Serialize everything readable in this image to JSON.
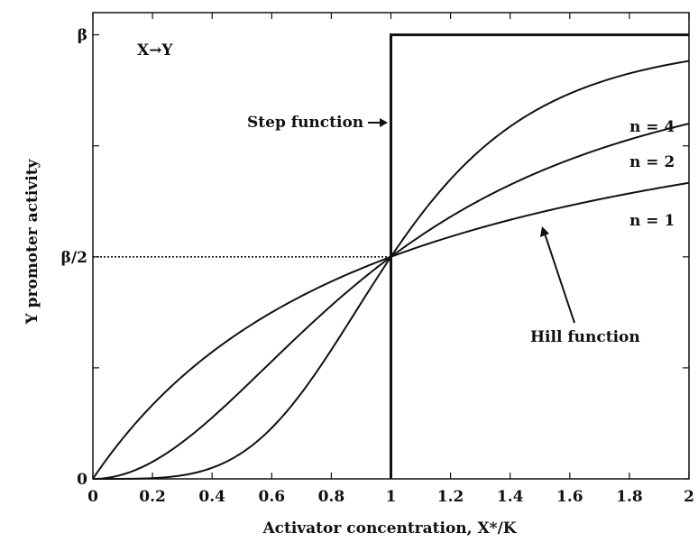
{
  "chart_data": {
    "type": "line",
    "title": "",
    "xlabel": "Activator concentration, X*/K",
    "ylabel": "Y promoter activity",
    "xlim": [
      0,
      2
    ],
    "ylim": [
      0,
      1.05
    ],
    "x_ticks": [
      {
        "v": 0,
        "label": "0"
      },
      {
        "v": 0.2,
        "label": "0.2"
      },
      {
        "v": 0.4,
        "label": "0.4"
      },
      {
        "v": 0.6,
        "label": "0.6"
      },
      {
        "v": 0.8,
        "label": "0.8"
      },
      {
        "v": 1,
        "label": "1"
      },
      {
        "v": 1.2,
        "label": "1.2"
      },
      {
        "v": 1.4,
        "label": "1.4"
      },
      {
        "v": 1.6,
        "label": "1.6"
      },
      {
        "v": 1.8,
        "label": "1.8"
      },
      {
        "v": 2,
        "label": "2"
      }
    ],
    "y_ticks": [
      {
        "v": 0,
        "label": "0"
      },
      {
        "v": 0.5,
        "label": "β/2"
      },
      {
        "v": 1,
        "label": "β"
      }
    ],
    "y_minor_ticks": [
      0.25,
      0.75
    ],
    "beta": 1,
    "grid": false,
    "series": [
      {
        "name": "n = 1",
        "hill_n": 1,
        "x_range": [
          0,
          2
        ],
        "color": "#111111"
      },
      {
        "name": "n = 2",
        "hill_n": 2,
        "x_range": [
          0,
          2
        ],
        "color": "#111111"
      },
      {
        "name": "n = 4",
        "hill_n": 4,
        "x_range": [
          0,
          2
        ],
        "color": "#111111"
      },
      {
        "name": "Step function",
        "step_at": 1,
        "x_range": [
          1,
          2
        ],
        "color": "#111111"
      }
    ],
    "reference_line": {
      "y": 0.5,
      "x_range": [
        0,
        1
      ],
      "style": "dotted"
    },
    "annotations": {
      "corner_label": "X→Y",
      "step_label": "Step function",
      "hill_label": "Hill function",
      "n4_label": "n = 4",
      "n2_label": "n = 2",
      "n1_label": "n = 1"
    }
  }
}
